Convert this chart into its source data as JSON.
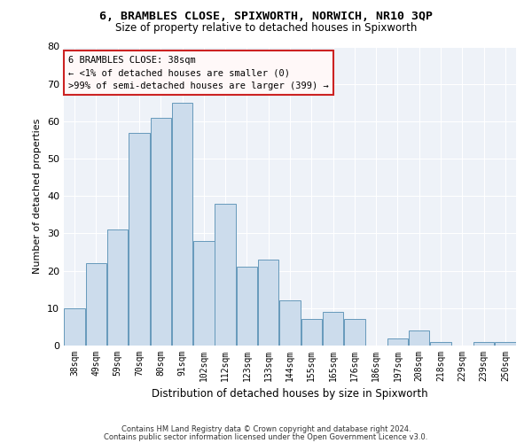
{
  "title": "6, BRAMBLES CLOSE, SPIXWORTH, NORWICH, NR10 3QP",
  "subtitle": "Size of property relative to detached houses in Spixworth",
  "xlabel": "Distribution of detached houses by size in Spixworth",
  "ylabel": "Number of detached properties",
  "categories": [
    "38sqm",
    "49sqm",
    "59sqm",
    "70sqm",
    "80sqm",
    "91sqm",
    "102sqm",
    "112sqm",
    "123sqm",
    "133sqm",
    "144sqm",
    "155sqm",
    "165sqm",
    "176sqm",
    "186sqm",
    "197sqm",
    "208sqm",
    "218sqm",
    "229sqm",
    "239sqm",
    "250sqm"
  ],
  "values": [
    10,
    22,
    31,
    57,
    61,
    65,
    28,
    38,
    21,
    23,
    12,
    7,
    9,
    7,
    0,
    2,
    4,
    1,
    0,
    1,
    1
  ],
  "bar_color": "#ccdcec",
  "bar_edge_color": "#6699bb",
  "ylim": [
    0,
    80
  ],
  "yticks": [
    0,
    10,
    20,
    30,
    40,
    50,
    60,
    70,
    80
  ],
  "background_color": "#eef2f8",
  "annotation_line1": "6 BRAMBLES CLOSE: 38sqm",
  "annotation_line2": "← <1% of detached houses are smaller (0)",
  "annotation_line3": ">99% of semi-detached houses are larger (399) →",
  "annotation_facecolor": "#fff8f8",
  "annotation_edgecolor": "#cc2222",
  "footer_line1": "Contains HM Land Registry data © Crown copyright and database right 2024.",
  "footer_line2": "Contains public sector information licensed under the Open Government Licence v3.0.",
  "title_fontsize": 9.5,
  "subtitle_fontsize": 8.5,
  "ylabel_fontsize": 8,
  "xlabel_fontsize": 8.5,
  "tick_fontsize": 7,
  "annotation_fontsize": 7.5,
  "footer_fontsize": 6
}
